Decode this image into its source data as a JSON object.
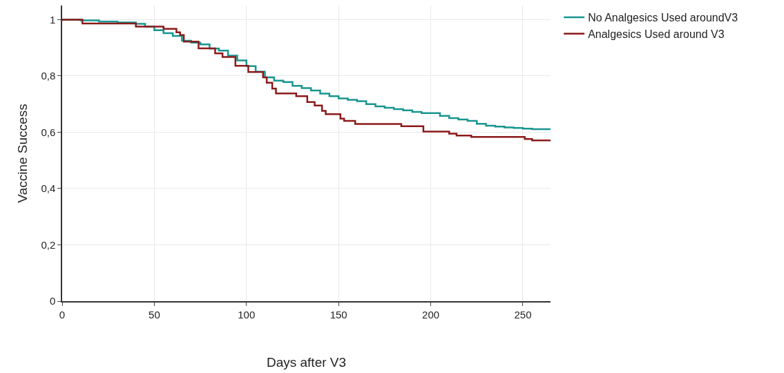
{
  "chart_data": {
    "type": "step",
    "xlabel": "Days after V3",
    "ylabel": "Vaccine Success",
    "xlim": [
      0,
      265
    ],
    "ylim": [
      0,
      1.05
    ],
    "xticks": [
      0,
      50,
      100,
      150,
      200,
      250
    ],
    "yticks": [
      0,
      {
        "value": 0.2,
        "label": "0,2"
      },
      {
        "value": 0.4,
        "label": "0,4"
      },
      {
        "value": 0.6,
        "label": "0,6"
      },
      {
        "value": 0.8,
        "label": "0,8"
      },
      1
    ],
    "grid": true,
    "legend": "top right",
    "marker": "none",
    "line_style": "solid",
    "series": [
      {
        "name": "No Analgesics Used aroundV3",
        "color": "#17958f",
        "x": [
          0,
          10,
          20,
          30,
          40,
          45,
          50,
          55,
          60,
          65,
          70,
          75,
          80,
          85,
          90,
          95,
          100,
          105,
          110,
          115,
          120,
          125,
          130,
          135,
          140,
          145,
          150,
          155,
          160,
          165,
          170,
          175,
          180,
          185,
          190,
          195,
          200,
          205,
          210,
          215,
          220,
          225,
          230,
          235,
          240,
          245,
          250,
          255,
          265
        ],
        "values": [
          1.0,
          0.997,
          0.993,
          0.99,
          0.985,
          0.975,
          0.962,
          0.952,
          0.942,
          0.925,
          0.918,
          0.912,
          0.897,
          0.89,
          0.872,
          0.855,
          0.835,
          0.815,
          0.795,
          0.783,
          0.778,
          0.765,
          0.757,
          0.748,
          0.737,
          0.728,
          0.72,
          0.715,
          0.71,
          0.7,
          0.692,
          0.687,
          0.682,
          0.678,
          0.672,
          0.668,
          0.668,
          0.658,
          0.65,
          0.645,
          0.64,
          0.63,
          0.623,
          0.62,
          0.617,
          0.615,
          0.613,
          0.611,
          0.61
        ]
      },
      {
        "name": "Analgesics Used around V3",
        "color": "#8b1a1a",
        "x": [
          0,
          11,
          40,
          55,
          62,
          64,
          66,
          74,
          83,
          87,
          94,
          101,
          109,
          111,
          114,
          116,
          127,
          133,
          137,
          141,
          143,
          151,
          153,
          159,
          184,
          196,
          210,
          214,
          222,
          251,
          255,
          265
        ],
        "values": [
          1.0,
          0.986,
          0.975,
          0.967,
          0.955,
          0.945,
          0.922,
          0.898,
          0.88,
          0.867,
          0.836,
          0.814,
          0.795,
          0.776,
          0.755,
          0.738,
          0.728,
          0.707,
          0.695,
          0.676,
          0.664,
          0.648,
          0.64,
          0.629,
          0.621,
          0.602,
          0.595,
          0.588,
          0.583,
          0.576,
          0.571,
          0.571
        ]
      }
    ]
  }
}
